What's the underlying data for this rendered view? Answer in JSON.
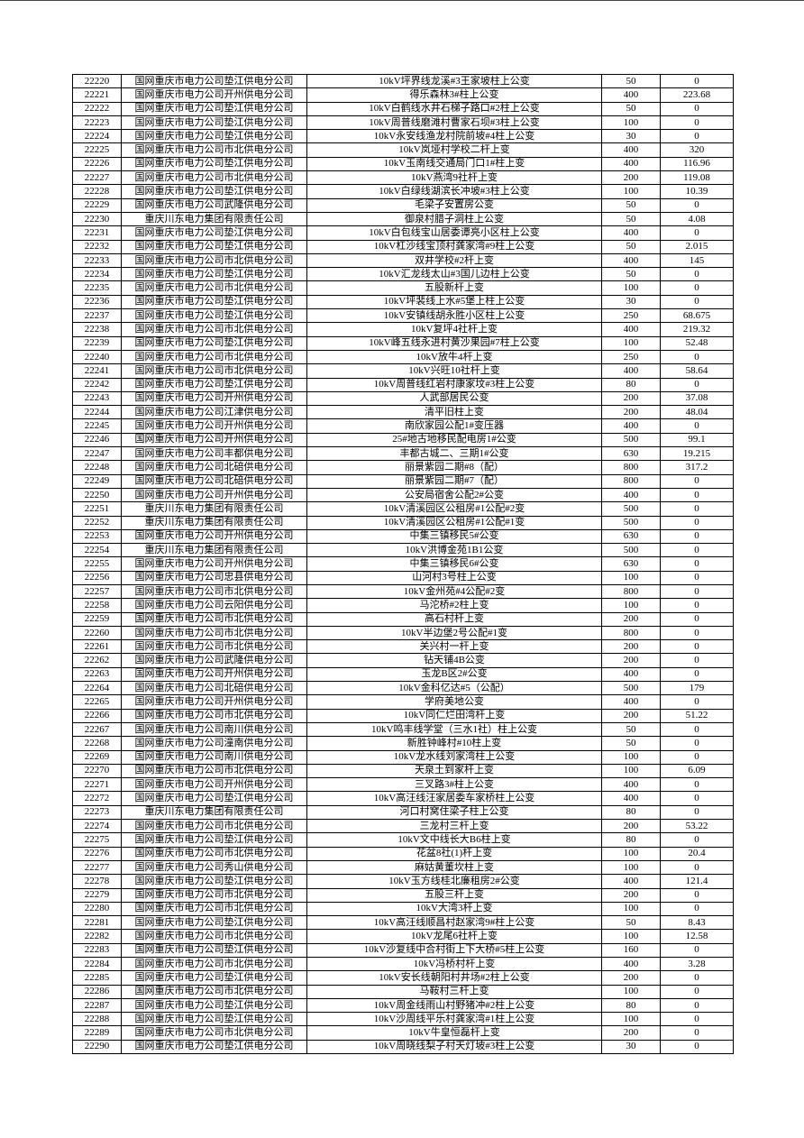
{
  "rows": [
    [
      "22220",
      "国网重庆市电力公司垫江供电分公司",
      "10kV坪界线龙溪#3王家坡柱上公变",
      "50",
      "0"
    ],
    [
      "22221",
      "国网重庆市电力公司开州供电分公司",
      "得乐森林3#柱上公变",
      "400",
      "223.68"
    ],
    [
      "22222",
      "国网重庆市电力公司垫江供电分公司",
      "10kV白鹤线水井石梯子路口#2柱上公变",
      "50",
      "0"
    ],
    [
      "22223",
      "国网重庆市电力公司垫江供电分公司",
      "10kV周普线磨滩村曹家石坝#3柱上公变",
      "100",
      "0"
    ],
    [
      "22224",
      "国网重庆市电力公司垫江供电分公司",
      "10kV永安线渔龙村院前坡#4柱上公变",
      "30",
      "0"
    ],
    [
      "22225",
      "国网重庆市电力公司市北供电分公司",
      "10kV岚垭村学校二杆上变",
      "400",
      "320"
    ],
    [
      "22226",
      "国网重庆市电力公司垫江供电分公司",
      "10kV玉南线交通局门口1#柱上变",
      "400",
      "116.96"
    ],
    [
      "22227",
      "国网重庆市电力公司市北供电分公司",
      "10kV燕湾9社杆上变",
      "200",
      "119.08"
    ],
    [
      "22228",
      "国网重庆市电力公司垫江供电分公司",
      "10kV白绿线湖滨长冲坡#3柱上公变",
      "100",
      "10.39"
    ],
    [
      "22229",
      "国网重庆市电力公司武隆供电分公司",
      "毛梁子安置房公变",
      "50",
      "0"
    ],
    [
      "22230",
      "重庆川东电力集团有限责任公司",
      "御泉村腊子洞柱上公变",
      "50",
      "4.08"
    ],
    [
      "22231",
      "国网重庆市电力公司垫江供电分公司",
      "10kV白包线宝山居委谭亮小区柱上公变",
      "400",
      "0"
    ],
    [
      "22232",
      "国网重庆市电力公司垫江供电分公司",
      "10kV杠沙线宝顶村龚家湾#9柱上公变",
      "50",
      "2.015"
    ],
    [
      "22233",
      "国网重庆市电力公司市北供电分公司",
      "双井学校#2杆上变",
      "400",
      "145"
    ],
    [
      "22234",
      "国网重庆市电力公司垫江供电分公司",
      "10kV汇龙线太山#3国儿边柱上公变",
      "50",
      "0"
    ],
    [
      "22235",
      "国网重庆市电力公司市北供电分公司",
      "五股新杆上变",
      "100",
      "0"
    ],
    [
      "22236",
      "国网重庆市电力公司垫江供电分公司",
      "10kV坪裴线上水#5堡上柱上公变",
      "30",
      "0"
    ],
    [
      "22237",
      "国网重庆市电力公司垫江供电分公司",
      "10kV安镇线胡永胜小区柱上公变",
      "250",
      "68.675"
    ],
    [
      "22238",
      "国网重庆市电力公司市北供电分公司",
      "10kV复坪4社杆上变",
      "400",
      "219.32"
    ],
    [
      "22239",
      "国网重庆市电力公司垫江供电分公司",
      "10kV峰五线永进村黄沙果园#7柱上公变",
      "100",
      "52.48"
    ],
    [
      "22240",
      "国网重庆市电力公司市北供电分公司",
      "10kV放牛4杆上变",
      "250",
      "0"
    ],
    [
      "22241",
      "国网重庆市电力公司市北供电分公司",
      "10kV兴旺10社杆上变",
      "400",
      "58.64"
    ],
    [
      "22242",
      "国网重庆市电力公司垫江供电分公司",
      "10kV周普线红岩村康家坟#3柱上公变",
      "80",
      "0"
    ],
    [
      "22243",
      "国网重庆市电力公司开州供电分公司",
      "人武部居民公变",
      "200",
      "37.08"
    ],
    [
      "22244",
      "国网重庆市电力公司江津供电分公司",
      "清平旧柱上变",
      "200",
      "48.04"
    ],
    [
      "22245",
      "国网重庆市电力公司开州供电分公司",
      "南欣家园公配1#变压器",
      "400",
      "0"
    ],
    [
      "22246",
      "国网重庆市电力公司开州供电分公司",
      "25#地古地移民配电房1#公变",
      "500",
      "99.1"
    ],
    [
      "22247",
      "国网重庆市电力公司丰都供电分公司",
      "丰都古城二、三期1#公变",
      "630",
      "19.215"
    ],
    [
      "22248",
      "国网重庆市电力公司北碚供电分公司",
      "丽景紫园二期#8（配）",
      "800",
      "317.2"
    ],
    [
      "22249",
      "国网重庆市电力公司北碚供电分公司",
      "丽景紫园二期#7（配）",
      "800",
      "0"
    ],
    [
      "22250",
      "国网重庆市电力公司开州供电分公司",
      "公安局宿舍公配2#公变",
      "400",
      "0"
    ],
    [
      "22251",
      "重庆川东电力集团有限责任公司",
      "10kV清溪园区公租房#1公配#2变",
      "500",
      "0"
    ],
    [
      "22252",
      "重庆川东电力集团有限责任公司",
      "10kV清溪园区公租房#1公配#1变",
      "500",
      "0"
    ],
    [
      "22253",
      "国网重庆市电力公司开州供电分公司",
      "中集三镇移民5#公变",
      "630",
      "0"
    ],
    [
      "22254",
      "重庆川东电力集团有限责任公司",
      "10kV洪博金苑1B1公变",
      "500",
      "0"
    ],
    [
      "22255",
      "国网重庆市电力公司开州供电分公司",
      "中集三镇移民6#公变",
      "630",
      "0"
    ],
    [
      "22256",
      "国网重庆市电力公司忠县供电分公司",
      "山河村3号柱上公变",
      "100",
      "0"
    ],
    [
      "22257",
      "国网重庆市电力公司市北供电分公司",
      "10kV金州苑#4公配#2变",
      "800",
      "0"
    ],
    [
      "22258",
      "国网重庆市电力公司云阳供电分公司",
      "马沱桥#2柱上变",
      "100",
      "0"
    ],
    [
      "22259",
      "国网重庆市电力公司市北供电分公司",
      "高石村杆上变",
      "200",
      "0"
    ],
    [
      "22260",
      "国网重庆市电力公司市北供电分公司",
      "10kV半边堡2号公配#1变",
      "800",
      "0"
    ],
    [
      "22261",
      "国网重庆市电力公司市北供电分公司",
      "关兴村一杆上变",
      "200",
      "0"
    ],
    [
      "22262",
      "国网重庆市电力公司武隆供电分公司",
      "钻天铺4B公变",
      "200",
      "0"
    ],
    [
      "22263",
      "国网重庆市电力公司开州供电分公司",
      "玉龙B区2#公变",
      "400",
      "0"
    ],
    [
      "22264",
      "国网重庆市电力公司北碚供电分公司",
      "10kV金科亿达#5（公配）",
      "500",
      "179"
    ],
    [
      "22265",
      "国网重庆市电力公司开州供电分公司",
      "学府美地公变",
      "400",
      "0"
    ],
    [
      "22266",
      "国网重庆市电力公司市北供电分公司",
      "10kV同仁烂田湾杆上变",
      "200",
      "51.22"
    ],
    [
      "22267",
      "国网重庆市电力公司南川供电分公司",
      "10kV鸣丰线学堂（三水1社）柱上公变",
      "50",
      "0"
    ],
    [
      "22268",
      "国网重庆市电力公司潼南供电分公司",
      "新胜钟峰村#10柱上变",
      "50",
      "0"
    ],
    [
      "22269",
      "国网重庆市电力公司南川供电分公司",
      "10kV龙水线刘家湾柱上公变",
      "100",
      "0"
    ],
    [
      "22270",
      "国网重庆市电力公司市北供电分公司",
      "天泉土到家杆上变",
      "100",
      "6.09"
    ],
    [
      "22271",
      "国网重庆市电力公司开州供电分公司",
      "三叉路3#柱上公变",
      "400",
      "0"
    ],
    [
      "22272",
      "国网重庆市电力公司垫江供电分公司",
      "10kV高汪线汪家居委车家桥柱上公变",
      "400",
      "0"
    ],
    [
      "22273",
      "重庆川东电力集团有限责任公司",
      "河口村窝住梁子柱上公变",
      "80",
      "0"
    ],
    [
      "22274",
      "国网重庆市电力公司市北供电分公司",
      "三龙村三杆上变",
      "200",
      "53.22"
    ],
    [
      "22275",
      "国网重庆市电力公司垫江供电分公司",
      "10kV文中线长大B6柱上变",
      "80",
      "0"
    ],
    [
      "22276",
      "国网重庆市电力公司市北供电分公司",
      "花盆8社(1)杆上变",
      "100",
      "20.4"
    ],
    [
      "22277",
      "国网重庆市电力公司秀山供电分公司",
      "麻姑黄董坎柱上变",
      "100",
      "0"
    ],
    [
      "22278",
      "国网重庆市电力公司垫江供电分公司",
      "10kV玉方线桂北廉租房2#公变",
      "400",
      "121.4"
    ],
    [
      "22279",
      "国网重庆市电力公司市北供电分公司",
      "五股三杆上变",
      "200",
      "0"
    ],
    [
      "22280",
      "国网重庆市电力公司市北供电分公司",
      "10kV大湾3杆上变",
      "100",
      "0"
    ],
    [
      "22281",
      "国网重庆市电力公司垫江供电分公司",
      "10kV高汪线顺昌村赵家湾9#柱上公变",
      "50",
      "8.43"
    ],
    [
      "22282",
      "国网重庆市电力公司市北供电分公司",
      "10kV龙尾6社杆上变",
      "100",
      "12.58"
    ],
    [
      "22283",
      "国网重庆市电力公司垫江供电分公司",
      "10kV沙复线中合村街上下大桥#5柱上公变",
      "160",
      "0"
    ],
    [
      "22284",
      "国网重庆市电力公司市北供电分公司",
      "10kV冯桥村杆上变",
      "400",
      "3.28"
    ],
    [
      "22285",
      "国网重庆市电力公司垫江供电分公司",
      "10kV安长线朝阳村井场#2柱上公变",
      "200",
      "0"
    ],
    [
      "22286",
      "国网重庆市电力公司市北供电分公司",
      "马鞍村三杆上变",
      "100",
      "0"
    ],
    [
      "22287",
      "国网重庆市电力公司垫江供电分公司",
      "10kV周金线雨山村野猪冲#2柱上公变",
      "80",
      "0"
    ],
    [
      "22288",
      "国网重庆市电力公司垫江供电分公司",
      "10kV沙周线平乐村龚家湾#1柱上公变",
      "100",
      "0"
    ],
    [
      "22289",
      "国网重庆市电力公司市北供电分公司",
      "10kV牛皇恒磊杆上变",
      "200",
      "0"
    ],
    [
      "22290",
      "国网重庆市电力公司垫江供电分公司",
      "10kV周晓线梨子村天灯坡#3柱上公变",
      "30",
      "0"
    ]
  ]
}
